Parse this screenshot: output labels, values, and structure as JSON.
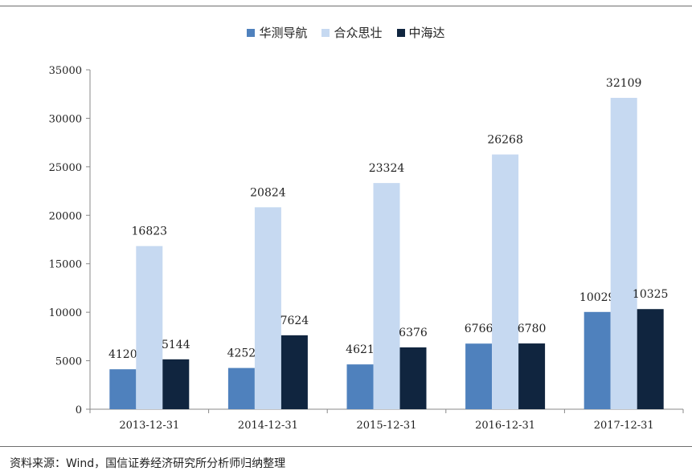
{
  "chart_data": {
    "type": "bar",
    "categories": [
      "2013-12-31",
      "2014-12-31",
      "2015-12-31",
      "2016-12-31",
      "2017-12-31"
    ],
    "series": [
      {
        "name": "华测导航",
        "color": "#4f81bd",
        "values": [
          4120,
          4252,
          4621,
          6766,
          10029
        ]
      },
      {
        "name": "合众思壮",
        "color": "#c6d9f1",
        "values": [
          16823,
          20824,
          23324,
          26268,
          32109
        ]
      },
      {
        "name": "中海达",
        "color": "#10253f",
        "values": [
          5144,
          7624,
          6376,
          6780,
          10325
        ]
      }
    ],
    "y_ticks": [
      0,
      5000,
      10000,
      15000,
      20000,
      25000,
      30000,
      35000
    ],
    "ylim": [
      0,
      35000
    ],
    "legend_position": "top-center",
    "grid": false
  },
  "footer": {
    "source": "资料来源：Wind，国信证券经济研究所分析师归纳整理"
  }
}
